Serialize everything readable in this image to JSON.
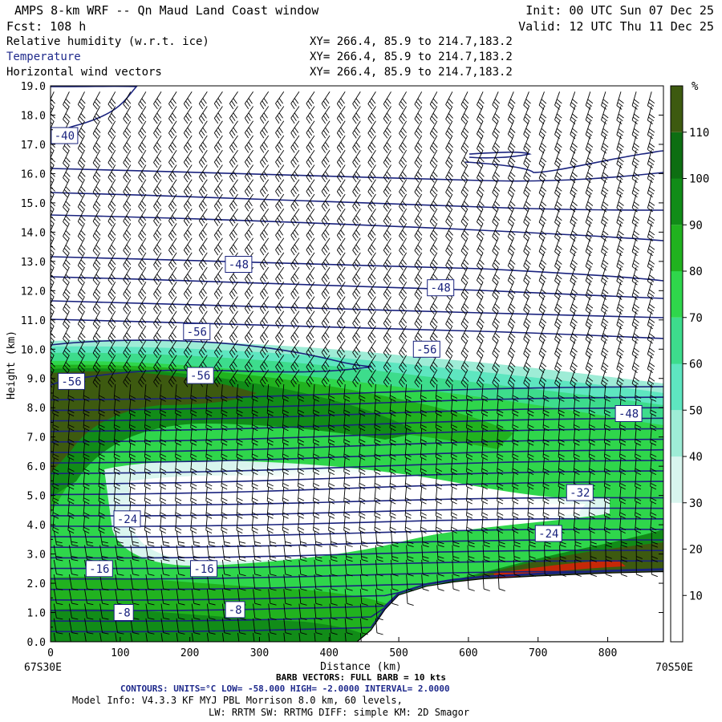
{
  "header": {
    "model_title": "AMPS 8-km WRF -- Qn Maud Land Coast window",
    "init": "Init: 00 UTC Sun 07 Dec 25",
    "forecast": "Fcst:  108 h",
    "valid": "Valid: 12 UTC Thu 11 Dec 25",
    "fields": [
      {
        "name": "Relative humidity (w.r.t. ice)",
        "xy": "XY= 266.4, 85.9 to 214.7,183.2"
      },
      {
        "name": "Temperature",
        "xy": "XY= 266.4, 85.9 to 214.7,183.2"
      },
      {
        "name": "Horizontal wind vectors",
        "xy": "XY= 266.4, 85.9 to 214.7,183.2"
      }
    ]
  },
  "footer": {
    "left_coord": "67S30E",
    "right_coord": "70S50E",
    "barb_note": "BARB VECTORS: FULL BARB = 10 kts",
    "contours": "CONTOURS: UNITS=°C  LOW= -58.000      HIGH= -2.0000      INTERVAL=   2.0000",
    "model_info_1": "Model Info: V4.3.3   KF     MYJ PBL  Morrison          8.0 km,  60 levels,",
    "model_info_2": "LW: RRTM SW: RRTMG   DIFF: simple KM: 2D Smagor"
  },
  "colors": {
    "temp_contour": "#1a237e",
    "terrain": "#ffffff",
    "rh_scale": [
      "#ffffff",
      "#ffffff",
      "#ffffff",
      "#d8f5ee",
      "#9eecd6",
      "#5ee6c0",
      "#3ddc8c",
      "#2fd64b",
      "#21b21f",
      "#118c18",
      "#0d6e12",
      "#3d5a10",
      "#c62808"
    ]
  },
  "chart_data": {
    "type": "cross-section",
    "xlabel": "Distance (km)",
    "ylabel": "Height (km)",
    "xlim": [
      0,
      880
    ],
    "ylim": [
      0,
      19
    ],
    "x_ticks": [
      0,
      100,
      200,
      300,
      400,
      500,
      600,
      700,
      800
    ],
    "y_ticks": [
      "0.0",
      "1.0",
      "2.0",
      "3.0",
      "4.0",
      "5.0",
      "6.0",
      "7.0",
      "8.0",
      "9.0",
      "10.0",
      "11.0",
      "12.0",
      "13.0",
      "14.0",
      "15.0",
      "16.0",
      "17.0",
      "18.0",
      "19.0"
    ],
    "colorbar": {
      "unit": "%",
      "levels": [
        0,
        10,
        20,
        30,
        40,
        50,
        60,
        70,
        80,
        90,
        100,
        110,
        120
      ],
      "tick_labels": [
        "10",
        "20",
        "30",
        "40",
        "50",
        "60",
        "70",
        "80",
        "90",
        "100",
        "110"
      ]
    },
    "terrain_profile": {
      "x_km": [
        0,
        440,
        460,
        480,
        500,
        540,
        580,
        620,
        660,
        700,
        750,
        800,
        850,
        880
      ],
      "height_km": [
        0,
        0,
        0.4,
        1.1,
        1.6,
        1.9,
        2.05,
        2.15,
        2.2,
        2.25,
        2.3,
        2.35,
        2.38,
        2.4
      ]
    },
    "temperature_labels": [
      {
        "text": "-40",
        "x": 20,
        "y": 17.3
      },
      {
        "text": "-48",
        "x": 270,
        "y": 12.9
      },
      {
        "text": "-48",
        "x": 560,
        "y": 12.1
      },
      {
        "text": "-56",
        "x": 210,
        "y": 10.6
      },
      {
        "text": "-56",
        "x": 540,
        "y": 10.0
      },
      {
        "text": "-56",
        "x": 30,
        "y": 8.9
      },
      {
        "text": "-56",
        "x": 215,
        "y": 9.1
      },
      {
        "text": "-48",
        "x": 830,
        "y": 7.8
      },
      {
        "text": "-32",
        "x": 760,
        "y": 5.1
      },
      {
        "text": "-24",
        "x": 110,
        "y": 4.2
      },
      {
        "text": "-24",
        "x": 715,
        "y": 3.7
      },
      {
        "text": "-16",
        "x": 70,
        "y": 2.5
      },
      {
        "text": "-16",
        "x": 220,
        "y": 2.5
      },
      {
        "text": "-8",
        "x": 105,
        "y": 1.0
      },
      {
        "text": "-8",
        "x": 265,
        "y": 1.1
      }
    ],
    "contour_interval": 2,
    "contour_low": -58,
    "contour_high": -2
  }
}
